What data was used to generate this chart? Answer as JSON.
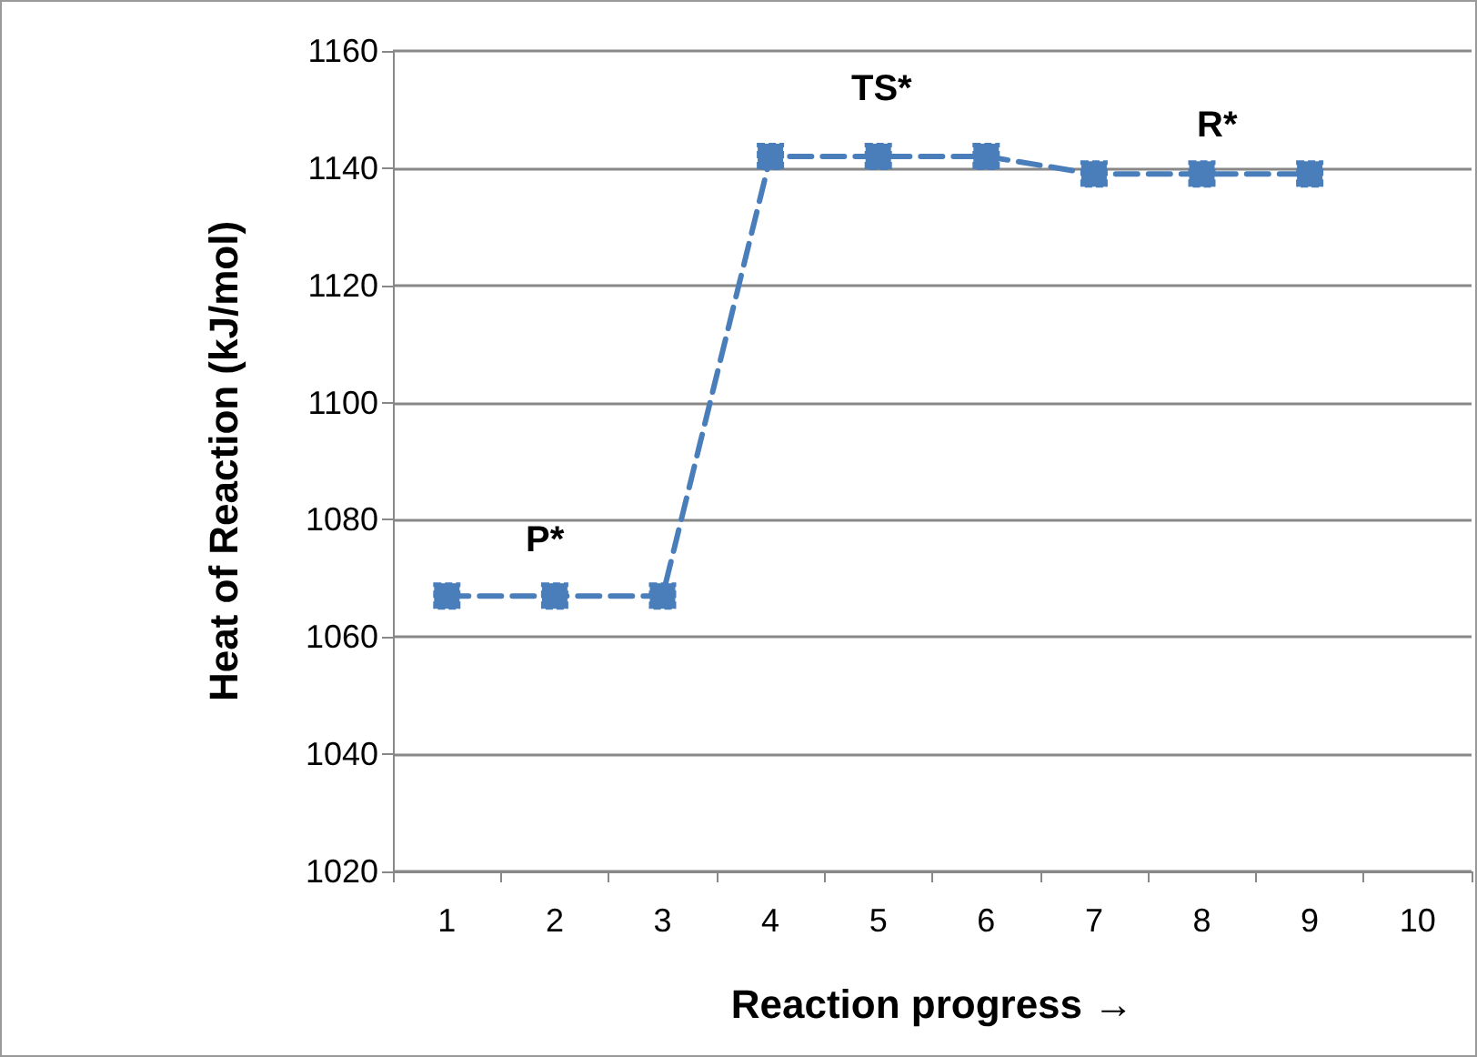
{
  "chart_data": {
    "type": "line",
    "xlabel": "Reaction progress →",
    "ylabel": "Heat of Reaction (kJ/mol)",
    "categories": [
      "1",
      "2",
      "3",
      "4",
      "5",
      "6",
      "7",
      "8",
      "9",
      "10"
    ],
    "series": [
      {
        "color": "#4a7ebb",
        "values": [
          1067,
          1067,
          1067,
          1142,
          1142,
          1142,
          1139,
          1139,
          1139,
          null
        ]
      }
    ],
    "ylim": [
      1020,
      1160
    ],
    "yticks": [
      1020,
      1040,
      1060,
      1080,
      1100,
      1120,
      1140,
      1160
    ],
    "grid": "y",
    "marker": "square",
    "line_style": "dashed",
    "annotations": [
      "P*",
      "TS*",
      "R*"
    ]
  }
}
